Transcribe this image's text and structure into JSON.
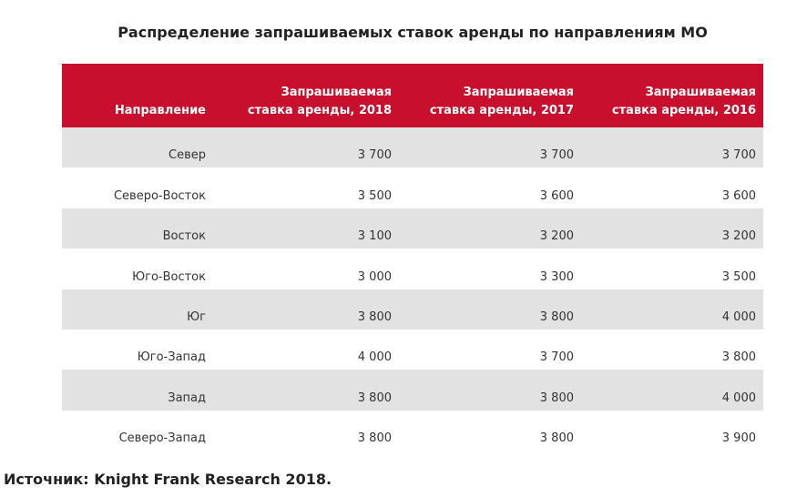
{
  "header": {
    "title": "Распределение запрашиваемых ставок аренды по направлениям МО"
  },
  "table": {
    "columns": [
      "Направление",
      "Запрашиваемая ставка аренды, 2018",
      "Запрашиваемая ставка аренды, 2017",
      "Запрашиваемая ставка аренды, 2016"
    ],
    "rows": [
      [
        "Север",
        "3 700",
        "3 700",
        "3 700"
      ],
      [
        "Северо-Восток",
        "3 500",
        "3 600",
        "3 600"
      ],
      [
        "Восток",
        "3 100",
        "3 200",
        "3 200"
      ],
      [
        "Юго-Восток",
        "3 000",
        "3 300",
        "3 500"
      ],
      [
        "Юг",
        "3 800",
        "3 800",
        "4 000"
      ],
      [
        "Юго-Запад",
        "4 000",
        "3 700",
        "3 800"
      ],
      [
        "Запад",
        "3 800",
        "3 800",
        "4 000"
      ],
      [
        "Северо-Запад",
        "3 800",
        "3 800",
        "3 900"
      ]
    ]
  },
  "source": "Источник: Knight Frank Research 2018."
}
